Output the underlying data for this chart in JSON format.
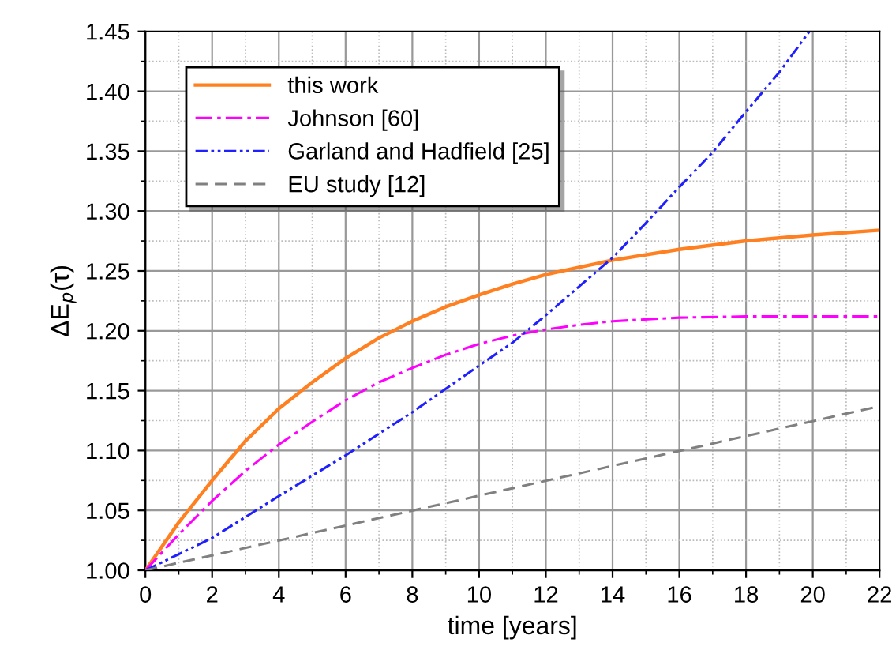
{
  "chart_data": {
    "type": "line",
    "xlabel": "time [years]",
    "ylabel": "ΔE$_{p}$(τ)",
    "xlim": [
      0,
      22
    ],
    "ylim": [
      1.0,
      1.45
    ],
    "xticks": [
      0,
      2,
      4,
      6,
      8,
      10,
      12,
      14,
      16,
      18,
      20,
      22
    ],
    "yticks": [
      {
        "value": 1.0,
        "label": "1.00"
      },
      {
        "value": 1.05,
        "label": "1.05"
      },
      {
        "value": 1.1,
        "label": "1.10"
      },
      {
        "value": 1.15,
        "label": "1.15"
      },
      {
        "value": 1.2,
        "label": "1.20"
      },
      {
        "value": 1.25,
        "label": "1.25"
      },
      {
        "value": 1.3,
        "label": "1.30"
      },
      {
        "value": 1.35,
        "label": "1.35"
      },
      {
        "value": 1.4,
        "label": "1.40"
      },
      {
        "value": 1.45,
        "label": "1.45"
      }
    ],
    "grid": true,
    "legend": "top left",
    "marker": "none",
    "series": [
      {
        "name": "this work",
        "color": "#ff8020",
        "line_style": "solid",
        "x": [
          0,
          1,
          2,
          3,
          4,
          5,
          6,
          7,
          8,
          9,
          10,
          11,
          12,
          13,
          14,
          16,
          18,
          20,
          22
        ],
        "values": [
          1.0,
          1.04,
          1.075,
          1.108,
          1.135,
          1.157,
          1.177,
          1.194,
          1.208,
          1.22,
          1.23,
          1.239,
          1.247,
          1.253,
          1.259,
          1.268,
          1.275,
          1.28,
          1.284
        ]
      },
      {
        "name": "Johnson [60]",
        "color": "#ff00ff",
        "line_style": "dashdot",
        "x": [
          0,
          1,
          2,
          3,
          4,
          5,
          6,
          7,
          8,
          9,
          10,
          11,
          12,
          13,
          14,
          16,
          18,
          20,
          22
        ],
        "values": [
          1.0,
          1.03,
          1.058,
          1.083,
          1.105,
          1.124,
          1.142,
          1.157,
          1.169,
          1.18,
          1.189,
          1.196,
          1.201,
          1.205,
          1.208,
          1.211,
          1.212,
          1.212,
          1.212
        ]
      },
      {
        "name": "Garland and Hadfield [25]",
        "color": "#2020ff",
        "line_style": "dashdotdot",
        "x": [
          0,
          2,
          4,
          6,
          8,
          10,
          11,
          12,
          13,
          14,
          15,
          16,
          17,
          18,
          19,
          19.9
        ],
        "values": [
          1.0,
          1.027,
          1.062,
          1.096,
          1.132,
          1.171,
          1.19,
          1.213,
          1.237,
          1.261,
          1.29,
          1.32,
          1.349,
          1.383,
          1.416,
          1.45
        ]
      },
      {
        "name": "EU study [12]",
        "color": "#808080",
        "line_style": "dashed",
        "x": [
          0,
          22
        ],
        "values": [
          1.0,
          1.137
        ]
      }
    ]
  }
}
